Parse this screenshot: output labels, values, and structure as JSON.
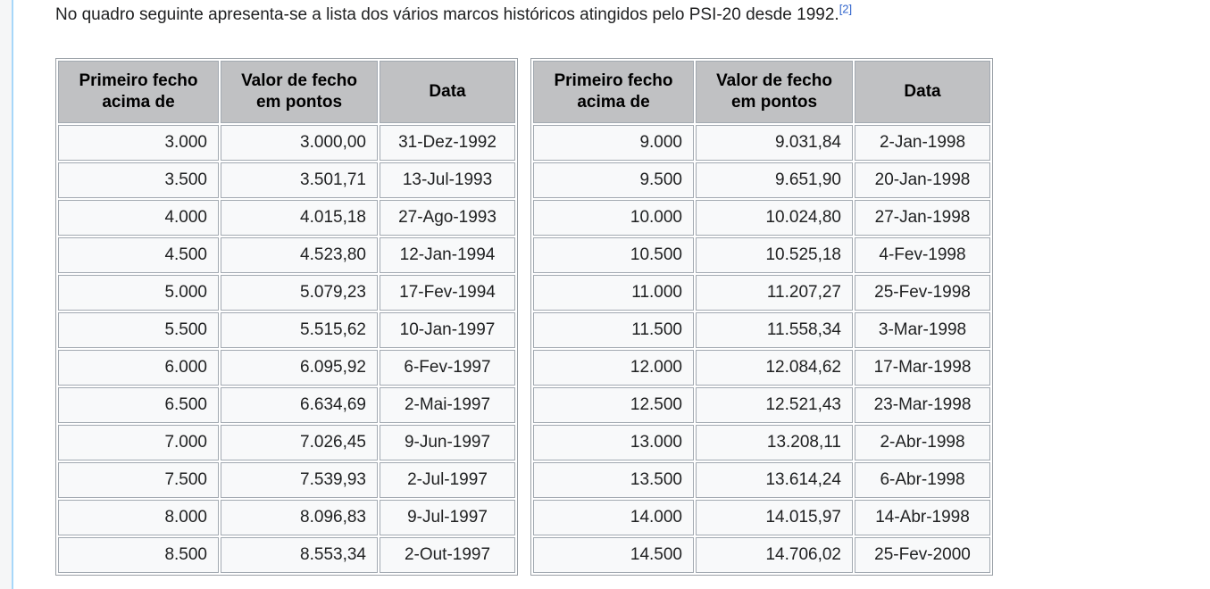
{
  "intro": {
    "text": "No quadro seguinte apresenta-se a lista dos vários marcos históricos atingidos pelo PSI-20 desde 1992.",
    "reference": "[2]"
  },
  "table": {
    "headers": [
      "Primeiro fecho acima de",
      "Valor de fecho em pontos",
      "Data"
    ],
    "left_rows": [
      [
        "3.000",
        "3.000,00",
        "31-Dez-1992"
      ],
      [
        "3.500",
        "3.501,71",
        "13-Jul-1993"
      ],
      [
        "4.000",
        "4.015,18",
        "27-Ago-1993"
      ],
      [
        "4.500",
        "4.523,80",
        "12-Jan-1994"
      ],
      [
        "5.000",
        "5.079,23",
        "17-Fev-1994"
      ],
      [
        "5.500",
        "5.515,62",
        "10-Jan-1997"
      ],
      [
        "6.000",
        "6.095,92",
        "6-Fev-1997"
      ],
      [
        "6.500",
        "6.634,69",
        "2-Mai-1997"
      ],
      [
        "7.000",
        "7.026,45",
        "9-Jun-1997"
      ],
      [
        "7.500",
        "7.539,93",
        "2-Jul-1997"
      ],
      [
        "8.000",
        "8.096,83",
        "9-Jul-1997"
      ],
      [
        "8.500",
        "8.553,34",
        "2-Out-1997"
      ]
    ],
    "right_rows": [
      [
        "9.000",
        "9.031,84",
        "2-Jan-1998"
      ],
      [
        "9.500",
        "9.651,90",
        "20-Jan-1998"
      ],
      [
        "10.000",
        "10.024,80",
        "27-Jan-1998"
      ],
      [
        "10.500",
        "10.525,18",
        "4-Fev-1998"
      ],
      [
        "11.000",
        "11.207,27",
        "25-Fev-1998"
      ],
      [
        "11.500",
        "11.558,34",
        "3-Mar-1998"
      ],
      [
        "12.000",
        "12.084,62",
        "17-Mar-1998"
      ],
      [
        "12.500",
        "12.521,43",
        "23-Mar-1998"
      ],
      [
        "13.000",
        "13.208,11",
        "2-Abr-1998"
      ],
      [
        "13.500",
        "13.614,24",
        "6-Abr-1998"
      ],
      [
        "14.000",
        "14.015,97",
        "14-Abr-1998"
      ],
      [
        "14.500",
        "14.706,02",
        "25-Fev-2000"
      ]
    ]
  },
  "colors": {
    "header_bg": "#c0c1c3",
    "cell_bg": "#f8f9fa",
    "cell_border": "#a2a9b1",
    "link": "#3366cc",
    "rail_bg": "#f5f6f7",
    "rail_line": "#a7d7f9",
    "text": "#202122"
  }
}
